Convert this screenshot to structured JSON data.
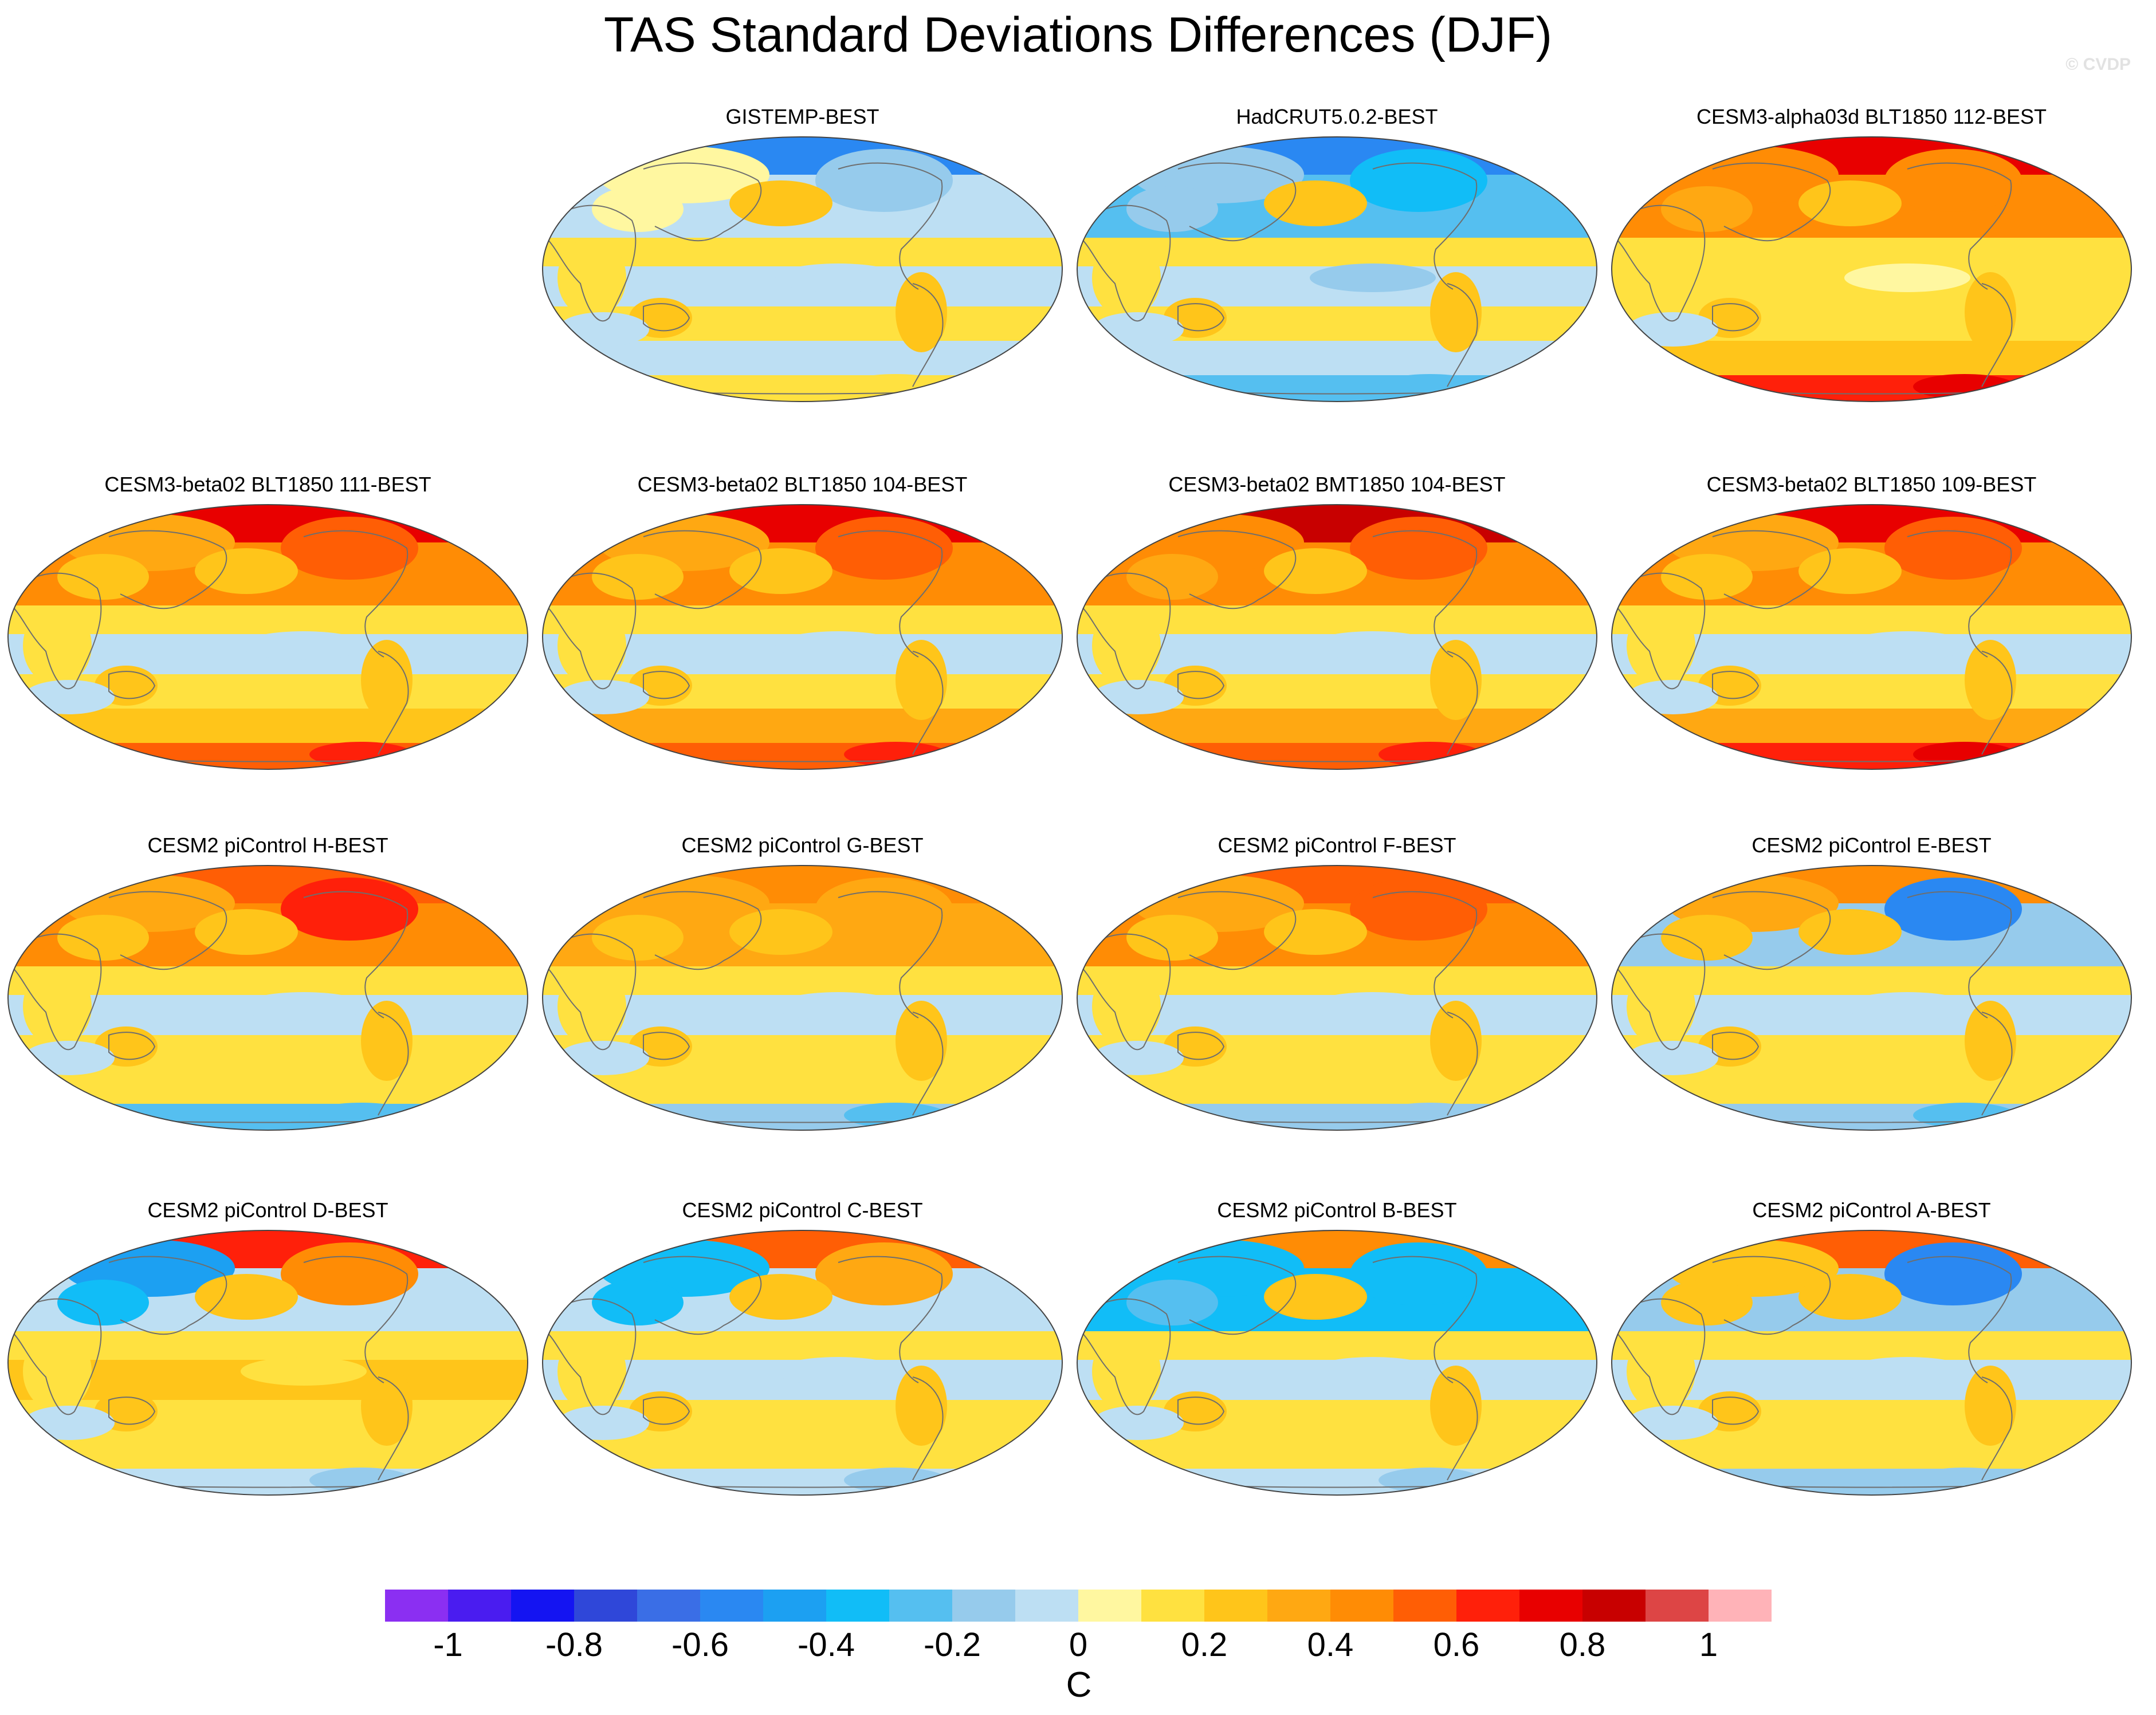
{
  "chart_data": {
    "type": "heatmap",
    "title": "TAS Standard Deviations Differences (DJF)",
    "watermark": "© CVDP",
    "projection": "Robinson (global map panels)",
    "panels": [
      {
        "title": "GISTEMP-BEST",
        "row": 0,
        "col": 1,
        "pattern": {
          "arctic": -0.55,
          "eurasia": 0.05,
          "namerica": -0.2,
          "tropics": -0.05,
          "south": -0.1,
          "antarctic": 0.15
        }
      },
      {
        "title": "HadCRUT5.0.2-BEST",
        "row": 0,
        "col": 2,
        "pattern": {
          "arctic": -0.6,
          "eurasia": -0.15,
          "namerica": -0.4,
          "tropics": -0.1,
          "south": -0.1,
          "antarctic": -0.25
        }
      },
      {
        "title": "CESM3-alpha03d BLT1850 112-BEST",
        "row": 0,
        "col": 3,
        "pattern": {
          "arctic": 0.75,
          "eurasia": 0.45,
          "namerica": 0.4,
          "tropics": 0.1,
          "south": 0.25,
          "antarctic": 0.6
        }
      },
      {
        "title": "CESM3-beta02 BLT1850 111-BEST",
        "row": 1,
        "col": 0,
        "pattern": {
          "arctic": 0.7,
          "eurasia": 0.35,
          "namerica": 0.55,
          "tropics": -0.05,
          "south": 0.25,
          "antarctic": 0.5
        }
      },
      {
        "title": "CESM3-beta02 BLT1850 104-BEST",
        "row": 1,
        "col": 1,
        "pattern": {
          "arctic": 0.7,
          "eurasia": 0.35,
          "namerica": 0.5,
          "tropics": -0.05,
          "south": 0.3,
          "antarctic": 0.55
        }
      },
      {
        "title": "CESM3-beta02 BMT1850 104-BEST",
        "row": 1,
        "col": 2,
        "pattern": {
          "arctic": 0.8,
          "eurasia": 0.4,
          "namerica": 0.5,
          "tropics": -0.05,
          "south": 0.3,
          "antarctic": 0.55
        }
      },
      {
        "title": "CESM3-beta02 BLT1850 109-BEST",
        "row": 1,
        "col": 3,
        "pattern": {
          "arctic": 0.7,
          "eurasia": 0.35,
          "namerica": 0.5,
          "tropics": -0.05,
          "south": 0.3,
          "antarctic": 0.6
        }
      },
      {
        "title": "CESM2 piControl H-BEST",
        "row": 2,
        "col": 0,
        "pattern": {
          "arctic": 0.55,
          "eurasia": 0.3,
          "namerica": 0.6,
          "tropics": -0.05,
          "south": 0.15,
          "antarctic": -0.25
        }
      },
      {
        "title": "CESM2 piControl G-BEST",
        "row": 2,
        "col": 1,
        "pattern": {
          "arctic": 0.45,
          "eurasia": 0.3,
          "namerica": 0.35,
          "tropics": -0.05,
          "south": 0.15,
          "antarctic": -0.2
        }
      },
      {
        "title": "CESM2 piControl F-BEST",
        "row": 2,
        "col": 2,
        "pattern": {
          "arctic": 0.5,
          "eurasia": 0.35,
          "namerica": 0.55,
          "tropics": -0.05,
          "south": 0.15,
          "antarctic": -0.15
        }
      },
      {
        "title": "CESM2 piControl E-BEST",
        "row": 2,
        "col": 3,
        "pattern": {
          "arctic": 0.45,
          "eurasia": 0.3,
          "namerica": -0.55,
          "tropics": -0.05,
          "south": 0.15,
          "antarctic": -0.2
        }
      },
      {
        "title": "CESM2 piControl D-BEST",
        "row": 3,
        "col": 0,
        "pattern": {
          "arctic": 0.6,
          "eurasia": -0.5,
          "namerica": 0.4,
          "tropics": 0.2,
          "south": 0.15,
          "antarctic": -0.1
        }
      },
      {
        "title": "CESM2 piControl C-BEST",
        "row": 3,
        "col": 1,
        "pattern": {
          "arctic": 0.55,
          "eurasia": -0.4,
          "namerica": 0.3,
          "tropics": -0.05,
          "south": 0.15,
          "antarctic": -0.1
        }
      },
      {
        "title": "CESM2 piControl B-BEST",
        "row": 3,
        "col": 2,
        "pattern": {
          "arctic": 0.4,
          "eurasia": -0.35,
          "namerica": -0.4,
          "tropics": -0.05,
          "south": 0.1,
          "antarctic": -0.1
        }
      },
      {
        "title": "CESM2 piControl A-BEST",
        "row": 3,
        "col": 3,
        "pattern": {
          "arctic": 0.55,
          "eurasia": 0.25,
          "namerica": -0.6,
          "tropics": -0.05,
          "south": 0.15,
          "antarctic": -0.15
        }
      }
    ],
    "colorbar": {
      "levels": [
        -1.1,
        -1.0,
        -0.9,
        -0.8,
        -0.7,
        -0.6,
        -0.5,
        -0.4,
        -0.3,
        -0.2,
        -0.1,
        0.0,
        0.1,
        0.2,
        0.3,
        0.4,
        0.5,
        0.6,
        0.7,
        0.8,
        0.9,
        1.0,
        1.1
      ],
      "colors": [
        "#8b2ff2",
        "#4a1cf0",
        "#1414f2",
        "#2f47d9",
        "#3a6ee6",
        "#2a88f2",
        "#1ca0f2",
        "#11bdf7",
        "#55bff0",
        "#96cbec",
        "#bddff3",
        "#fff7a0",
        "#ffe140",
        "#ffc51a",
        "#ffa812",
        "#ff8c05",
        "#ff5e05",
        "#ff200a",
        "#e80000",
        "#c80000",
        "#dd4545",
        "#ffb3b8"
      ],
      "tick_values": [
        -1,
        -0.8,
        -0.6,
        -0.4,
        -0.2,
        0,
        0.2,
        0.4,
        0.6,
        0.8,
        1
      ],
      "tick_labels": [
        "-1",
        "-0.8",
        "-0.6",
        "-0.4",
        "-0.2",
        "0",
        "0.2",
        "0.4",
        "0.6",
        "0.8",
        "1"
      ],
      "unit": "C"
    }
  }
}
